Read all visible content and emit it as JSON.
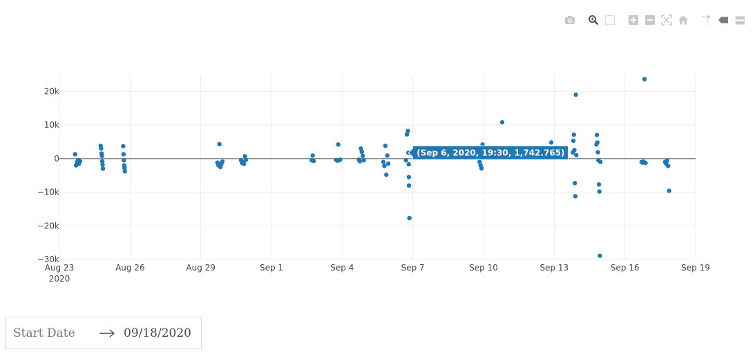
{
  "modebar": {
    "buttons": [
      {
        "name": "camera-icon",
        "title": "Download plot as a png"
      },
      {
        "name": "zoom-icon",
        "title": "Zoom"
      },
      {
        "name": "box-select-icon",
        "title": "Box Select"
      },
      {
        "name": "zoom-in-icon",
        "title": "Zoom in"
      },
      {
        "name": "zoom-out-icon",
        "title": "Zoom out"
      },
      {
        "name": "autoscale-icon",
        "title": "Autoscale"
      },
      {
        "name": "home-icon",
        "title": "Reset axes"
      },
      {
        "name": "spike-lines-icon",
        "title": "Toggle Spike Lines"
      },
      {
        "name": "hover-closest-icon",
        "title": "Show closest data on hover"
      },
      {
        "name": "hover-compare-icon",
        "title": "Compare data on hover"
      }
    ]
  },
  "chart_data": {
    "type": "scatter",
    "title": "",
    "xlabel": "",
    "ylabel": "",
    "xlim": [
      "2020-08-23 00:00",
      "2020-09-19 00:00"
    ],
    "ylim": [
      -30000,
      25000
    ],
    "x_ticks": [
      "2020-08-23",
      "2020-08-26",
      "2020-08-29",
      "2020-09-01",
      "2020-09-04",
      "2020-09-07",
      "2020-09-10",
      "2020-09-13",
      "2020-09-16",
      "2020-09-19"
    ],
    "x_tick_labels": [
      "Aug 23",
      "Aug 26",
      "Aug 29",
      "Sep 1",
      "Sep 4",
      "Sep 7",
      "Sep 10",
      "Sep 13",
      "Sep 16",
      "Sep 19"
    ],
    "x_tick_year_label": "2020",
    "y_ticks": [
      20000,
      10000,
      0,
      -10000,
      -20000,
      -30000
    ],
    "y_tick_labels": [
      "20k",
      "10k",
      "0",
      "−10k",
      "−20k",
      "−30k"
    ],
    "grid": true,
    "zero_line": true,
    "marker_color": "#1f77b4",
    "hover": {
      "x": "2020-09-06 19:30",
      "y": 1742.765,
      "text": "(Sep 6, 2020, 19:30, 1,742.765)"
    },
    "series": [
      {
        "points": [
          [
            "2020-08-23 16:00",
            1300
          ],
          [
            "2020-08-23 17:00",
            -2000
          ],
          [
            "2020-08-23 18:00",
            -1000
          ],
          [
            "2020-08-23 19:00",
            -500
          ],
          [
            "2020-08-23 20:00",
            -1500
          ],
          [
            "2020-08-23 21:00",
            -800
          ],
          [
            "2020-08-24 18:00",
            3800
          ],
          [
            "2020-08-24 18:30",
            3000
          ],
          [
            "2020-08-24 19:00",
            1500
          ],
          [
            "2020-08-24 19:20",
            800
          ],
          [
            "2020-08-24 19:40",
            -800
          ],
          [
            "2020-08-24 20:00",
            -1800
          ],
          [
            "2020-08-24 20:20",
            -3000
          ],
          [
            "2020-08-25 17:00",
            3700
          ],
          [
            "2020-08-25 17:20",
            1300
          ],
          [
            "2020-08-25 17:40",
            -500
          ],
          [
            "2020-08-25 18:00",
            -2000
          ],
          [
            "2020-08-25 18:20",
            -2800
          ],
          [
            "2020-08-25 18:40",
            -3800
          ],
          [
            "2020-08-29 17:00",
            -1200
          ],
          [
            "2020-08-29 18:00",
            -2000
          ],
          [
            "2020-08-29 19:00",
            4300
          ],
          [
            "2020-08-29 20:00",
            -2500
          ],
          [
            "2020-08-29 21:00",
            -1600
          ],
          [
            "2020-08-29 22:00",
            -900
          ],
          [
            "2020-08-30 17:00",
            -500
          ],
          [
            "2020-08-30 18:00",
            -1300
          ],
          [
            "2020-08-30 19:00",
            -1000
          ],
          [
            "2020-08-30 20:00",
            -1600
          ],
          [
            "2020-08-30 21:00",
            700
          ],
          [
            "2020-08-30 22:00",
            -400
          ],
          [
            "2020-09-02 17:00",
            -500
          ],
          [
            "2020-09-02 18:00",
            900
          ],
          [
            "2020-09-02 19:00",
            -700
          ],
          [
            "2020-09-03 18:00",
            -400
          ],
          [
            "2020-09-03 19:00",
            -600
          ],
          [
            "2020-09-03 20:00",
            4200
          ],
          [
            "2020-09-03 21:00",
            -500
          ],
          [
            "2020-09-03 22:00",
            -300
          ],
          [
            "2020-09-04 17:00",
            -300
          ],
          [
            "2020-09-04 18:00",
            -800
          ],
          [
            "2020-09-04 19:00",
            3000
          ],
          [
            "2020-09-04 20:00",
            2000
          ],
          [
            "2020-09-04 21:00",
            800
          ],
          [
            "2020-09-04 22:00",
            -500
          ],
          [
            "2020-09-05 18:00",
            -1000
          ],
          [
            "2020-09-05 19:00",
            -2200
          ],
          [
            "2020-09-05 20:00",
            3800
          ],
          [
            "2020-09-05 21:00",
            -4800
          ],
          [
            "2020-09-05 22:00",
            900
          ],
          [
            "2020-09-05 23:00",
            -1500
          ],
          [
            "2020-09-06 17:00",
            -500
          ],
          [
            "2020-09-06 18:00",
            7200
          ],
          [
            "2020-09-06 19:30",
            1742.765
          ],
          [
            "2020-09-06 19:00",
            8200
          ],
          [
            "2020-09-06 19:50",
            -1700
          ],
          [
            "2020-09-06 19:55",
            -5500
          ],
          [
            "2020-09-06 20:00",
            -8000
          ],
          [
            "2020-09-06 20:30",
            -17700
          ],
          [
            "2020-09-09 20:00",
            -1000
          ],
          [
            "2020-09-09 21:00",
            -2000
          ],
          [
            "2020-09-09 22:00",
            -2900
          ],
          [
            "2020-09-09 23:00",
            4200
          ],
          [
            "2020-09-10 19:00",
            10800
          ],
          [
            "2020-09-12 21:00",
            4800
          ],
          [
            "2020-09-12 23:00",
            900
          ],
          [
            "2020-09-13 19:00",
            1800
          ],
          [
            "2020-09-13 19:30",
            5300
          ],
          [
            "2020-09-13 20:00",
            7100
          ],
          [
            "2020-09-13 20:30",
            2500
          ],
          [
            "2020-09-13 21:00",
            -7300
          ],
          [
            "2020-09-13 21:30",
            -11200
          ],
          [
            "2020-09-13 22:00",
            19000
          ],
          [
            "2020-09-13 22:30",
            1000
          ],
          [
            "2020-09-14 19:00",
            4200
          ],
          [
            "2020-09-14 19:30",
            7000
          ],
          [
            "2020-09-14 20:00",
            4800
          ],
          [
            "2020-09-14 20:30",
            1900
          ],
          [
            "2020-09-14 21:00",
            -500
          ],
          [
            "2020-09-14 21:30",
            -7700
          ],
          [
            "2020-09-14 22:00",
            -9800
          ],
          [
            "2020-09-14 22:30",
            -28900
          ],
          [
            "2020-09-14 23:00",
            -1000
          ],
          [
            "2020-09-16 17:00",
            -1000
          ],
          [
            "2020-09-16 18:00",
            -1200
          ],
          [
            "2020-09-16 19:00",
            -900
          ],
          [
            "2020-09-16 20:00",
            23600
          ],
          [
            "2020-09-16 21:00",
            -1300
          ],
          [
            "2020-09-17 17:00",
            -1000
          ],
          [
            "2020-09-17 18:00",
            -1500
          ],
          [
            "2020-09-17 19:00",
            -600
          ],
          [
            "2020-09-17 20:00",
            -2200
          ],
          [
            "2020-09-17 21:00",
            -9600
          ]
        ]
      }
    ]
  },
  "date_range": {
    "start_placeholder": "Start Date",
    "end_value": "09/18/2020"
  }
}
